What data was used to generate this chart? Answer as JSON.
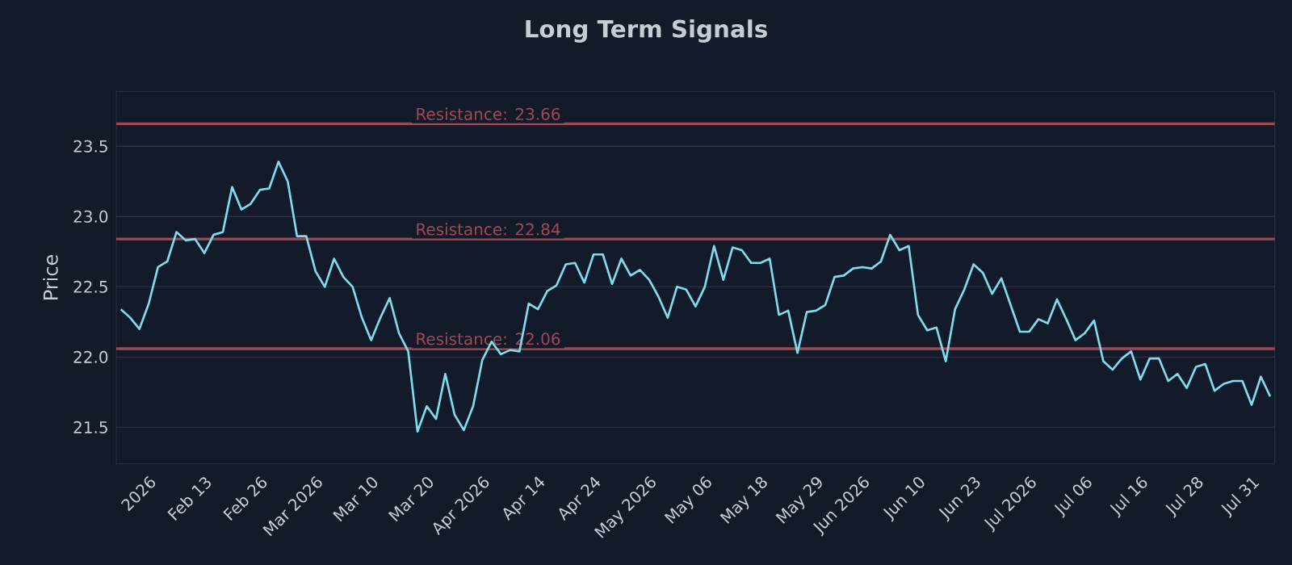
{
  "chart_data": {
    "type": "line",
    "title": "Long Term Signals",
    "ylabel": "Price",
    "categories": [
      null,
      null,
      null,
      "2026",
      null,
      null,
      null,
      null,
      null,
      "Feb 13",
      null,
      null,
      null,
      null,
      null,
      "Feb 26",
      null,
      null,
      null,
      null,
      null,
      "Mar 2026",
      null,
      null,
      null,
      null,
      null,
      "Mar 10",
      null,
      null,
      null,
      null,
      null,
      "Mar 20",
      null,
      null,
      null,
      null,
      null,
      "Apr 2026",
      null,
      null,
      null,
      null,
      null,
      "Apr 14",
      null,
      null,
      null,
      null,
      null,
      "Apr 24",
      null,
      null,
      null,
      null,
      null,
      "May 2026",
      null,
      null,
      null,
      null,
      null,
      "May 06",
      null,
      null,
      null,
      null,
      null,
      "May 18",
      null,
      null,
      null,
      null,
      null,
      "May 29",
      null,
      null,
      null,
      null,
      "Jun 2026",
      null,
      null,
      null,
      null,
      null,
      "Jun 10",
      null,
      null,
      null,
      null,
      null,
      "Jun 23",
      null,
      null,
      null,
      null,
      null,
      "Jul 2026",
      null,
      null,
      null,
      null,
      null,
      "Jul 06",
      null,
      null,
      null,
      null,
      null,
      "Jul 16",
      null,
      null,
      null,
      null,
      null,
      "Jul 28",
      null,
      null,
      null,
      null,
      null,
      "Jul 31",
      null,
      null
    ],
    "series": [
      {
        "color": "#7fdcef",
        "values": [
          22.34,
          22.28,
          22.2,
          22.38,
          22.64,
          22.68,
          22.89,
          22.83,
          22.84,
          22.74,
          22.87,
          22.89,
          23.21,
          23.05,
          23.09,
          23.19,
          23.2,
          23.39,
          23.25,
          22.86,
          22.86,
          22.61,
          22.5,
          22.7,
          22.57,
          22.5,
          22.28,
          22.12,
          22.28,
          22.42,
          22.17,
          22.04,
          21.47,
          21.65,
          21.56,
          21.88,
          21.59,
          21.48,
          21.65,
          21.98,
          22.11,
          22.02,
          22.05,
          22.04,
          22.38,
          22.34,
          22.47,
          22.51,
          22.66,
          22.67,
          22.53,
          22.73,
          22.73,
          22.52,
          22.7,
          22.58,
          22.62,
          22.55,
          22.43,
          22.28,
          22.5,
          22.48,
          22.36,
          22.5,
          22.79,
          22.55,
          22.78,
          22.76,
          22.67,
          22.67,
          22.7,
          22.3,
          22.33,
          22.03,
          22.32,
          22.33,
          22.37,
          22.57,
          22.58,
          22.63,
          22.64,
          22.63,
          22.68,
          22.87,
          22.76,
          22.79,
          22.3,
          22.19,
          22.21,
          21.97,
          22.34,
          22.48,
          22.66,
          22.6,
          22.45,
          22.56,
          22.37,
          22.18,
          22.18,
          22.27,
          22.24,
          22.41,
          22.27,
          22.12,
          22.17,
          22.26,
          21.97,
          21.91,
          21.99,
          22.04,
          21.84,
          21.99,
          21.99,
          21.83,
          21.88,
          21.78,
          21.93,
          21.95,
          21.76,
          21.81,
          21.83,
          21.83,
          21.66,
          21.86,
          21.72
        ]
      }
    ],
    "ylim": [
      21.24,
      23.89
    ],
    "yticks": [
      {
        "value": 21.5,
        "label": "21.5"
      },
      {
        "value": 22,
        "label": "22.0"
      },
      {
        "value": 22.5,
        "label": "22.5"
      },
      {
        "value": 23,
        "label": "23.0"
      },
      {
        "value": 23.5,
        "label": "23.5"
      }
    ],
    "grid": "y",
    "marker": "none",
    "line_style": "solid",
    "ref_lines": [
      {
        "axis": "y",
        "value": 23.66,
        "label": "Resistance: 23.66",
        "color": "#9e4a55"
      },
      {
        "axis": "y",
        "value": 22.84,
        "label": "Resistance: 22.84",
        "color": "#9e4a55"
      },
      {
        "axis": "y",
        "value": 22.06,
        "label": "Resistance: 22.06",
        "color": "#9e4a55"
      }
    ]
  }
}
